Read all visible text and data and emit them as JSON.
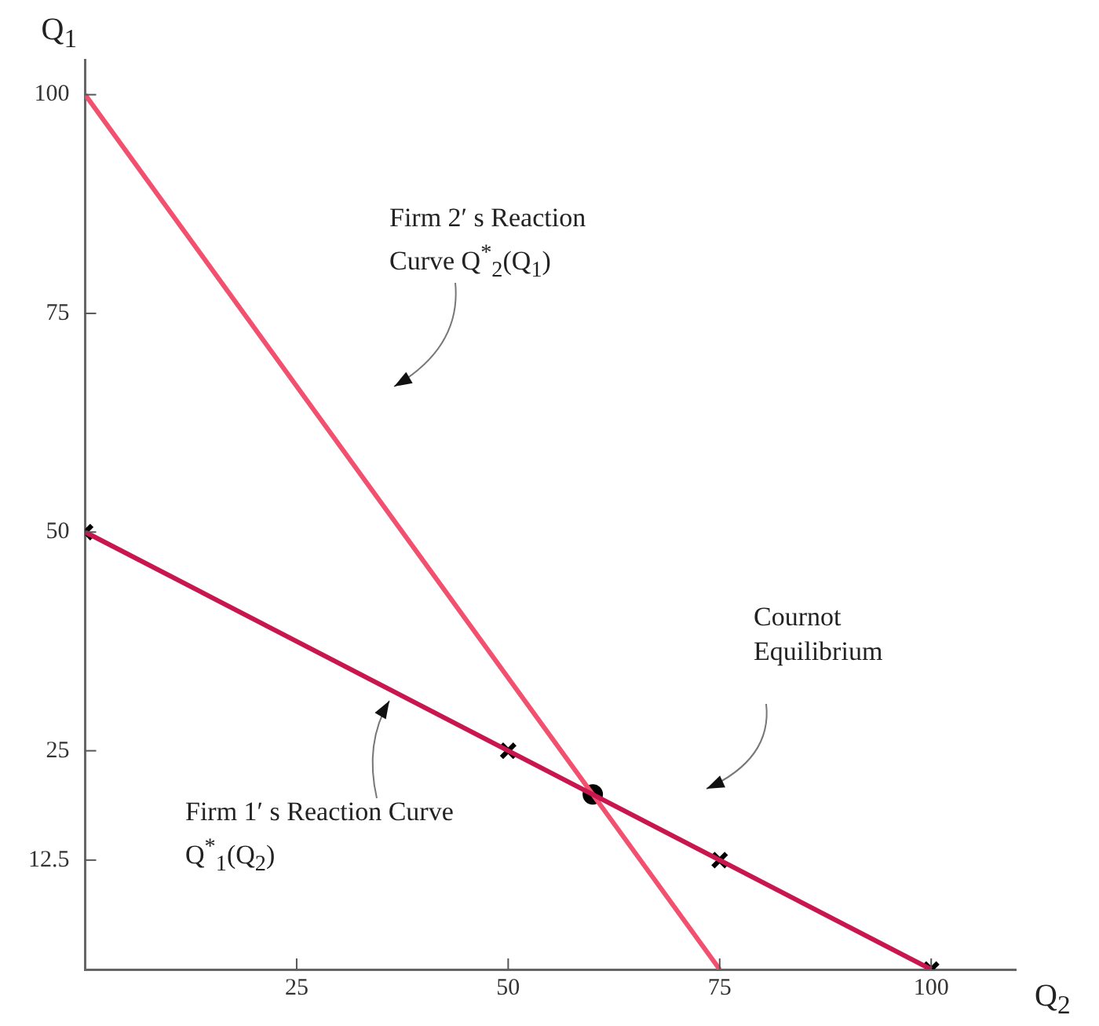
{
  "chart_data": {
    "type": "line",
    "xlabel": "Q$_{2}$",
    "ylabel": "Q$_{1}$",
    "xlim": [
      0,
      110
    ],
    "ylim": [
      0,
      104
    ],
    "xticks": [
      25,
      50,
      75,
      100
    ],
    "yticks": [
      12.5,
      25,
      50,
      75,
      100
    ],
    "grid": false,
    "legend": false,
    "series": [
      {
        "color": "#c8164e",
        "x": [
          0,
          100
        ],
        "values": [
          50,
          0
        ],
        "marker": "none"
      },
      {
        "color": "#f2506f",
        "x": [
          0,
          75
        ],
        "values": [
          100,
          0
        ],
        "marker": "none"
      },
      {
        "type": "scatter",
        "color": "#000000",
        "x": [
          0,
          50,
          75,
          100
        ],
        "values": [
          50,
          25,
          12.5,
          0
        ],
        "marker": "cross"
      },
      {
        "type": "scatter",
        "color": "#000000",
        "x": [
          60
        ],
        "values": [
          20
        ],
        "marker": "circle"
      }
    ],
    "annotations": [
      "Firm 2′ s Reaction Curve Q$^{*}$$_{2}$(Q$_{1}$)",
      "Firm 1′ s Reaction Curve Q$^{*}$$_{1}$(Q$_{2}$)",
      "Cournot Equilibrium"
    ]
  }
}
